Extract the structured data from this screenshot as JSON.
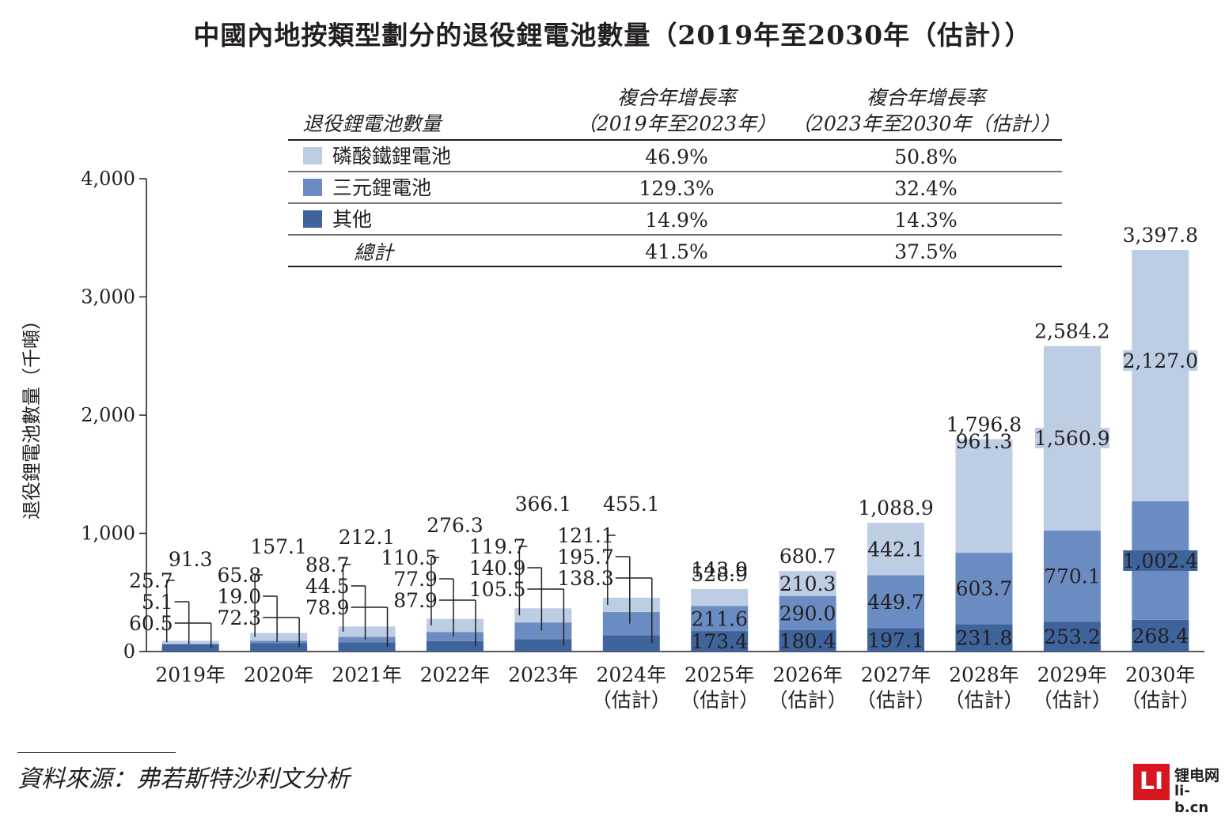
{
  "title": "中國內地按類型劃分的退役鋰電池數量（2019年至2030年（估計））",
  "colors": {
    "lfp": "#bccde4",
    "ncm": "#6b8cc2",
    "other": "#3f639b",
    "text": "#231f20"
  },
  "legend_table": {
    "header_label": "退役鋰電池數量",
    "col1_header_line1": "複合年增長率",
    "col1_header_line2": "（2019年至2023年）",
    "col2_header_line1": "複合年增長率",
    "col2_header_line2": "（2023年至2030年（估計））",
    "rows": [
      {
        "label": "磷酸鐵鋰電池",
        "cagr1": "46.9%",
        "cagr2": "50.8%",
        "color_key": "lfp"
      },
      {
        "label": "三元鋰電池",
        "cagr1": "129.3%",
        "cagr2": "32.4%",
        "color_key": "ncm"
      },
      {
        "label": "其他",
        "cagr1": "14.9%",
        "cagr2": "14.3%",
        "color_key": "other"
      },
      {
        "label": "總計",
        "cagr1": "41.5%",
        "cagr2": "37.5%",
        "color_key": ""
      }
    ]
  },
  "chart_data": {
    "type": "bar",
    "stacked": true,
    "ylabel": "退役鋰電池數量（千噸）",
    "ylim": [
      0,
      4000
    ],
    "yticks": [
      "0",
      "1,000",
      "2,000",
      "3,000",
      "4,000"
    ],
    "categories": [
      [
        "2019年"
      ],
      [
        "2020年"
      ],
      [
        "2021年"
      ],
      [
        "2022年"
      ],
      [
        "2023年"
      ],
      [
        "2024年",
        "（估計）"
      ],
      [
        "2025年",
        "（估計）"
      ],
      [
        "2026年",
        "（估計）"
      ],
      [
        "2027年",
        "（估計）"
      ],
      [
        "2028年",
        "（估計）"
      ],
      [
        "2029年",
        "（估計）"
      ],
      [
        "2030年",
        "（估計）"
      ]
    ],
    "series": [
      {
        "name": "其他",
        "color_key": "other",
        "values": [
          60.5,
          72.3,
          78.9,
          87.9,
          105.5,
          138.3,
          173.4,
          180.4,
          197.1,
          231.8,
          253.2,
          268.4
        ],
        "labels": [
          "60.5",
          "72.3",
          "78.9",
          "87.9",
          "105.5",
          "138.3",
          "173.4",
          "180.4",
          "197.1",
          "231.8",
          "253.2",
          "268.4"
        ]
      },
      {
        "name": "三元鋰電池",
        "color_key": "ncm",
        "values": [
          5.1,
          19.0,
          44.5,
          77.9,
          140.9,
          195.7,
          211.6,
          290.0,
          449.7,
          603.7,
          770.1,
          1002.4
        ],
        "labels": [
          "5.1",
          "19.0",
          "44.5",
          "77.9",
          "140.9",
          "195.7",
          "211.6",
          "290.0",
          "449.7",
          "603.7",
          "770.1",
          "1,002.4"
        ]
      },
      {
        "name": "磷酸鐵鋰電池",
        "color_key": "lfp",
        "values": [
          25.7,
          65.8,
          88.7,
          110.5,
          119.7,
          121.1,
          143.9,
          210.3,
          442.1,
          961.3,
          1560.9,
          2127.0
        ],
        "labels": [
          "25.7",
          "65.8",
          "88.7",
          "110.5",
          "119.7",
          "121.1",
          "143.9",
          "210.3",
          "442.1",
          "961.3",
          "1,560.9",
          "2,127.0"
        ]
      }
    ],
    "totals": [
      91.3,
      157.1,
      212.1,
      276.3,
      366.1,
      455.1,
      528.9,
      680.7,
      1088.9,
      1796.8,
      2584.2,
      3397.8
    ],
    "total_labels": [
      "91.3",
      "157.1",
      "212.1",
      "276.3",
      "366.1",
      "455.1",
      "528.9",
      "680.7",
      "1,088.9",
      "1,796.8",
      "2,584.2",
      "3,397.8"
    ]
  },
  "source": "資料來源：弗若斯特沙利文分析",
  "watermark": {
    "logo": "LI",
    "name": "锂电网",
    "url": "li-b.cn"
  }
}
